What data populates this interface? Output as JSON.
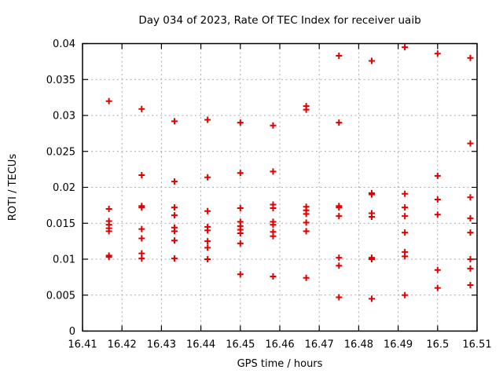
{
  "page": {
    "background": "#ffffff"
  },
  "chart_data": {
    "type": "scatter",
    "title": "Day 034 of 2023, Rate Of TEC Index for receiver uaib",
    "xlabel": "GPS time / hours",
    "ylabel": "ROTI / TECUs",
    "xlim": [
      16.41,
      16.51
    ],
    "ylim": [
      0,
      0.04
    ],
    "grid": true,
    "legend": "none",
    "colors": {
      "marker": "#e00000",
      "grid": "#a8a8a8",
      "border": "#000000"
    },
    "marker": {
      "shape": "plus",
      "color": "#e00000"
    },
    "xticks": {
      "values": [
        16.41,
        16.42,
        16.43,
        16.44,
        16.45,
        16.46,
        16.47,
        16.48,
        16.49,
        16.5,
        16.51
      ],
      "labels": [
        "16.41",
        "16.42",
        "16.43",
        "16.44",
        "16.45",
        "16.46",
        "16.47",
        "16.48",
        "16.49",
        "16.5",
        "16.51"
      ]
    },
    "yticks": {
      "values": [
        0,
        0.005,
        0.01,
        0.015,
        0.02,
        0.025,
        0.03,
        0.035,
        0.04
      ],
      "labels": [
        "0",
        "0.005",
        "0.01",
        "0.015",
        "0.02",
        "0.025",
        "0.03",
        "0.035",
        "0.04"
      ]
    },
    "series": [
      {
        "name": "ROTI",
        "points": [
          [
            16.4167,
            0.032
          ],
          [
            16.4167,
            0.017
          ],
          [
            16.4167,
            0.0153
          ],
          [
            16.4167,
            0.0148
          ],
          [
            16.4167,
            0.0143
          ],
          [
            16.4167,
            0.0139
          ],
          [
            16.4167,
            0.0105
          ],
          [
            16.4167,
            0.0103
          ],
          [
            16.425,
            0.0309
          ],
          [
            16.425,
            0.0217
          ],
          [
            16.425,
            0.0174
          ],
          [
            16.425,
            0.0172
          ],
          [
            16.425,
            0.0142
          ],
          [
            16.425,
            0.0129
          ],
          [
            16.425,
            0.0108
          ],
          [
            16.425,
            0.0101
          ],
          [
            16.4333,
            0.0292
          ],
          [
            16.4333,
            0.0208
          ],
          [
            16.4333,
            0.0172
          ],
          [
            16.4333,
            0.0161
          ],
          [
            16.4333,
            0.0144
          ],
          [
            16.4333,
            0.0139
          ],
          [
            16.4333,
            0.0126
          ],
          [
            16.4333,
            0.0101
          ],
          [
            16.4417,
            0.0294
          ],
          [
            16.4417,
            0.0214
          ],
          [
            16.4417,
            0.0167
          ],
          [
            16.4417,
            0.0145
          ],
          [
            16.4417,
            0.014
          ],
          [
            16.4417,
            0.0125
          ],
          [
            16.4417,
            0.0116
          ],
          [
            16.4417,
            0.01
          ],
          [
            16.45,
            0.029
          ],
          [
            16.45,
            0.022
          ],
          [
            16.45,
            0.0171
          ],
          [
            16.45,
            0.0152
          ],
          [
            16.45,
            0.0146
          ],
          [
            16.45,
            0.0141
          ],
          [
            16.45,
            0.0136
          ],
          [
            16.45,
            0.0122
          ],
          [
            16.45,
            0.0079
          ],
          [
            16.4583,
            0.0286
          ],
          [
            16.4583,
            0.0222
          ],
          [
            16.4583,
            0.0176
          ],
          [
            16.4583,
            0.0171
          ],
          [
            16.4583,
            0.0152
          ],
          [
            16.4583,
            0.0148
          ],
          [
            16.4583,
            0.0138
          ],
          [
            16.4583,
            0.0132
          ],
          [
            16.4583,
            0.0076
          ],
          [
            16.4667,
            0.0313
          ],
          [
            16.4667,
            0.0308
          ],
          [
            16.4667,
            0.0173
          ],
          [
            16.4667,
            0.0168
          ],
          [
            16.4667,
            0.0163
          ],
          [
            16.4667,
            0.0151
          ],
          [
            16.4667,
            0.0139
          ],
          [
            16.4667,
            0.0074
          ],
          [
            16.475,
            0.0383
          ],
          [
            16.475,
            0.029
          ],
          [
            16.475,
            0.0174
          ],
          [
            16.475,
            0.0172
          ],
          [
            16.475,
            0.016
          ],
          [
            16.475,
            0.0102
          ],
          [
            16.475,
            0.0091
          ],
          [
            16.475,
            0.0047
          ],
          [
            16.4833,
            0.0376
          ],
          [
            16.4833,
            0.0192
          ],
          [
            16.4833,
            0.019
          ],
          [
            16.4833,
            0.0164
          ],
          [
            16.4833,
            0.0159
          ],
          [
            16.4833,
            0.0102
          ],
          [
            16.4833,
            0.01
          ],
          [
            16.4833,
            0.0045
          ],
          [
            16.4917,
            0.0395
          ],
          [
            16.4917,
            0.0191
          ],
          [
            16.4917,
            0.0172
          ],
          [
            16.4917,
            0.016
          ],
          [
            16.4917,
            0.0137
          ],
          [
            16.4917,
            0.011
          ],
          [
            16.4917,
            0.0104
          ],
          [
            16.4917,
            0.005
          ],
          [
            16.5,
            0.0386
          ],
          [
            16.5,
            0.0216
          ],
          [
            16.5,
            0.0183
          ],
          [
            16.5,
            0.0162
          ],
          [
            16.5,
            0.0085
          ],
          [
            16.5,
            0.006
          ],
          [
            16.5083,
            0.038
          ],
          [
            16.5083,
            0.0261
          ],
          [
            16.5083,
            0.0186
          ],
          [
            16.5083,
            0.0157
          ],
          [
            16.5083,
            0.0137
          ],
          [
            16.5083,
            0.01
          ],
          [
            16.5083,
            0.0087
          ],
          [
            16.5083,
            0.0064
          ]
        ]
      }
    ]
  }
}
